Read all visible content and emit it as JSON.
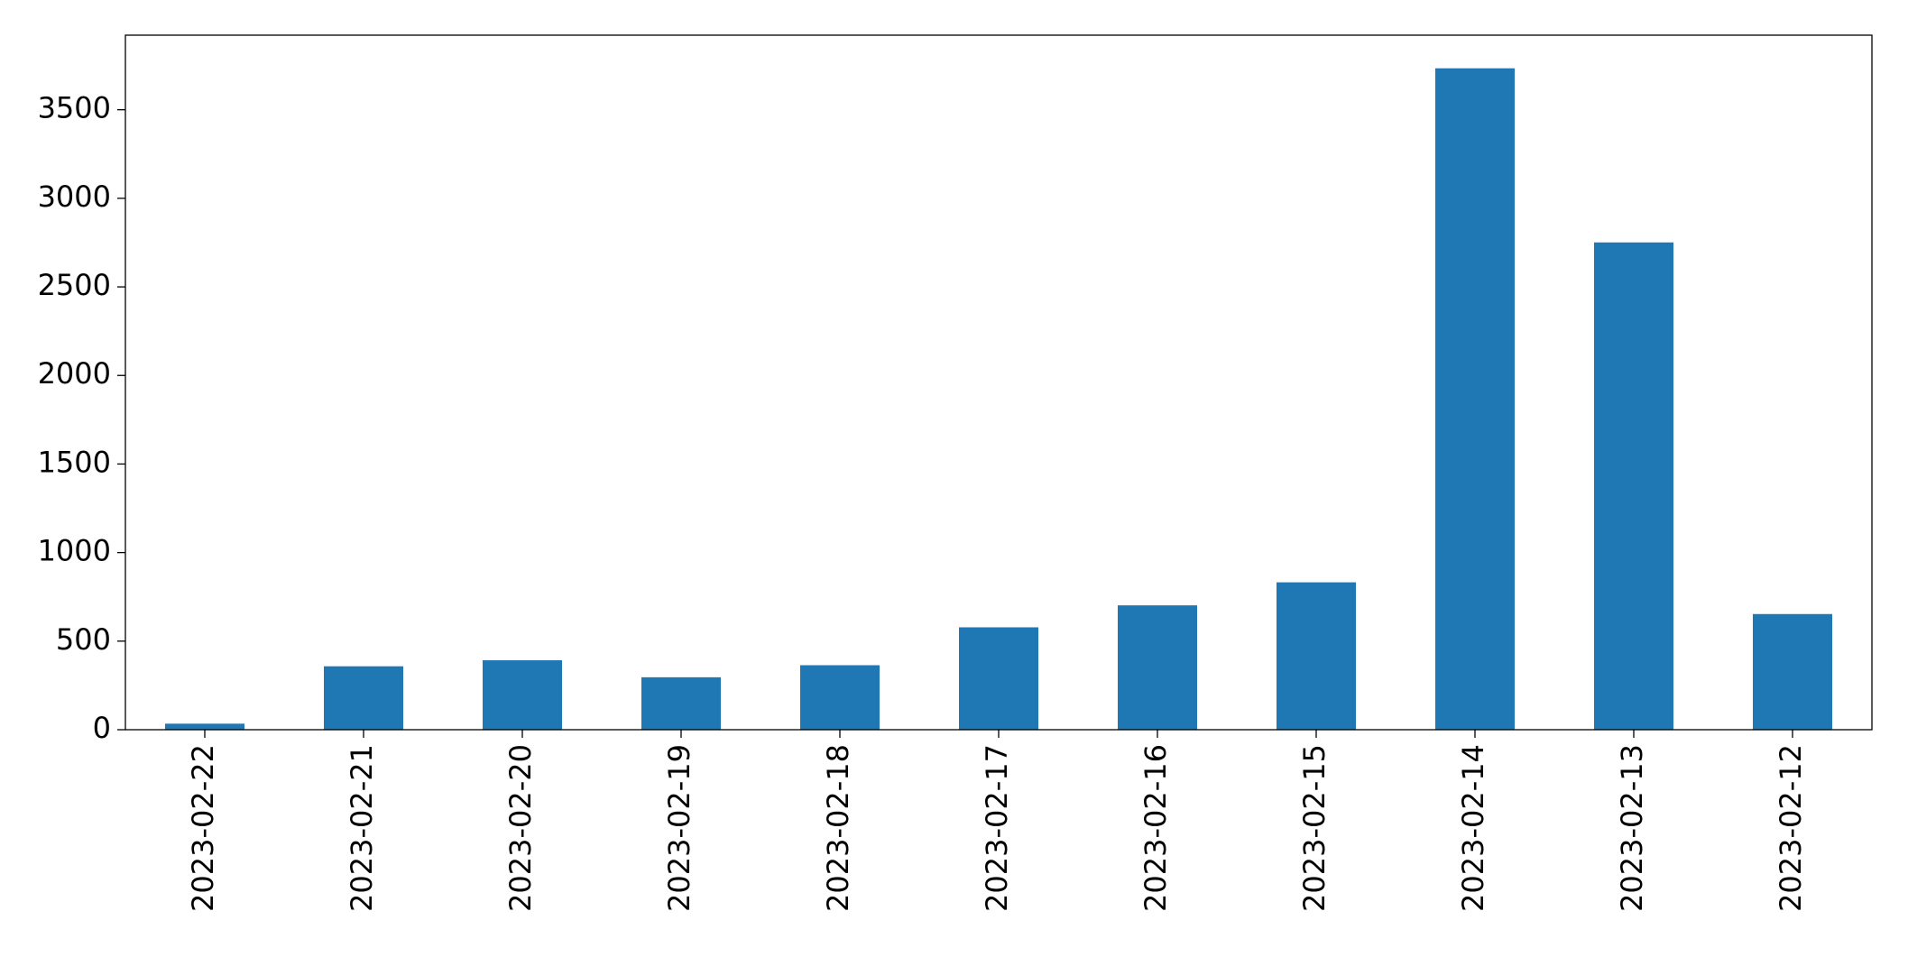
{
  "chart_data": {
    "type": "bar",
    "categories": [
      "2023-02-22",
      "2023-02-21",
      "2023-02-20",
      "2023-02-19",
      "2023-02-18",
      "2023-02-17",
      "2023-02-16",
      "2023-02-15",
      "2023-02-14",
      "2023-02-13",
      "2023-02-12"
    ],
    "values": [
      34,
      358,
      392,
      296,
      364,
      578,
      702,
      832,
      3734,
      2751,
      653
    ],
    "color": "#1f77b4",
    "ylim": [
      0,
      3921
    ],
    "yticks": [
      0,
      500,
      1000,
      1500,
      2000,
      2500,
      3000,
      3500
    ],
    "grid": false
  }
}
